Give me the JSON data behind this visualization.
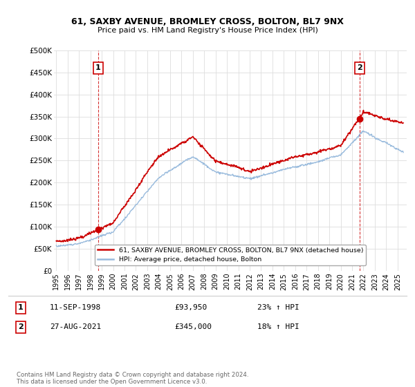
{
  "title": "61, SAXBY AVENUE, BROMLEY CROSS, BOLTON, BL7 9NX",
  "subtitle": "Price paid vs. HM Land Registry's House Price Index (HPI)",
  "legend_line1": "61, SAXBY AVENUE, BROMLEY CROSS, BOLTON, BL7 9NX (detached house)",
  "legend_line2": "HPI: Average price, detached house, Bolton",
  "annotation1_label": "1",
  "annotation1_date": "11-SEP-1998",
  "annotation1_price": "£93,950",
  "annotation1_hpi": "23% ↑ HPI",
  "annotation2_label": "2",
  "annotation2_date": "27-AUG-2021",
  "annotation2_price": "£345,000",
  "annotation2_hpi": "18% ↑ HPI",
  "footnote": "Contains HM Land Registry data © Crown copyright and database right 2024.\nThis data is licensed under the Open Government Licence v3.0.",
  "sale1_x": 1998.69,
  "sale1_y": 93950,
  "sale2_x": 2021.65,
  "sale2_y": 345000,
  "red_color": "#cc0000",
  "blue_color": "#99bbdd",
  "vline_color": "#cc0000",
  "ylim_min": 0,
  "ylim_max": 500000,
  "xlim_min": 1994.8,
  "xlim_max": 2025.8,
  "yticks": [
    0,
    50000,
    100000,
    150000,
    200000,
    250000,
    300000,
    350000,
    400000,
    450000,
    500000
  ],
  "ytick_labels": [
    "£0",
    "£50K",
    "£100K",
    "£150K",
    "£200K",
    "£250K",
    "£300K",
    "£350K",
    "£400K",
    "£450K",
    "£500K"
  ],
  "xticks": [
    1995,
    1996,
    1997,
    1998,
    1999,
    2000,
    2001,
    2002,
    2003,
    2004,
    2005,
    2006,
    2007,
    2008,
    2009,
    2010,
    2011,
    2012,
    2013,
    2014,
    2015,
    2016,
    2017,
    2018,
    2019,
    2020,
    2021,
    2022,
    2023,
    2024,
    2025
  ]
}
